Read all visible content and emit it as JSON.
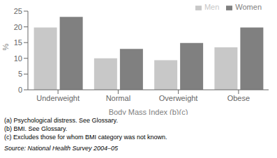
{
  "chart_data": {
    "type": "bar",
    "categories": [
      "Underweight",
      "Normal",
      "Overweight",
      "Obese"
    ],
    "series": [
      {
        "name": "Men",
        "color": "#c8c8c8",
        "values": [
          19.8,
          10.0,
          9.4,
          13.5
        ]
      },
      {
        "name": "Women",
        "color": "#808080",
        "values": [
          23.2,
          13.0,
          14.9,
          19.8
        ]
      }
    ],
    "xlabel": "Body Mass Index (b)(c)",
    "ylabel": "%",
    "ylim": [
      0,
      25
    ],
    "yticks": [
      0,
      5,
      10,
      15,
      20,
      25
    ],
    "grid": false,
    "legend": "upper right",
    "annotations": [
      "(a) Psychological distress. See Glossary.",
      "(b) BMI. See Glossary.",
      "(c) Excludes those for whom BMI category was not known.",
      "Source: National Health Survey 2004–05"
    ]
  }
}
